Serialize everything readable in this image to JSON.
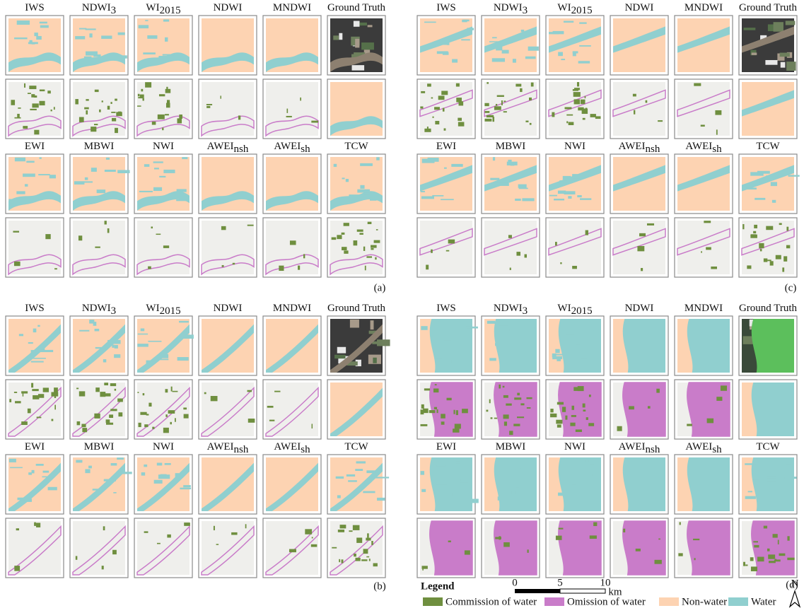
{
  "methods": [
    [
      {
        "name": "IWS"
      },
      {
        "name": "NDWI",
        "sub": "3"
      },
      {
        "name": "WI",
        "sub": "2015"
      },
      {
        "name": "NDWI"
      },
      {
        "name": "MNDWI"
      },
      {
        "name": "Ground Truth"
      }
    ],
    [
      {
        "name": "EWI"
      },
      {
        "name": "MBWI"
      },
      {
        "name": "NWI"
      },
      {
        "name": "AWEI",
        "sub": "nsh"
      },
      {
        "name": "AWEI",
        "sub": "sh"
      },
      {
        "name": "TCW"
      }
    ]
  ],
  "panels": [
    "(a)",
    "(b)",
    "(c)",
    "(d)"
  ],
  "legend": {
    "title": "Legend",
    "items": [
      "Commission of water",
      "Omission of water",
      "Non-water",
      "Water"
    ]
  },
  "scale_bar": {
    "ticks": [
      "0",
      "5",
      "10"
    ],
    "unit": "km"
  },
  "north": "N"
}
